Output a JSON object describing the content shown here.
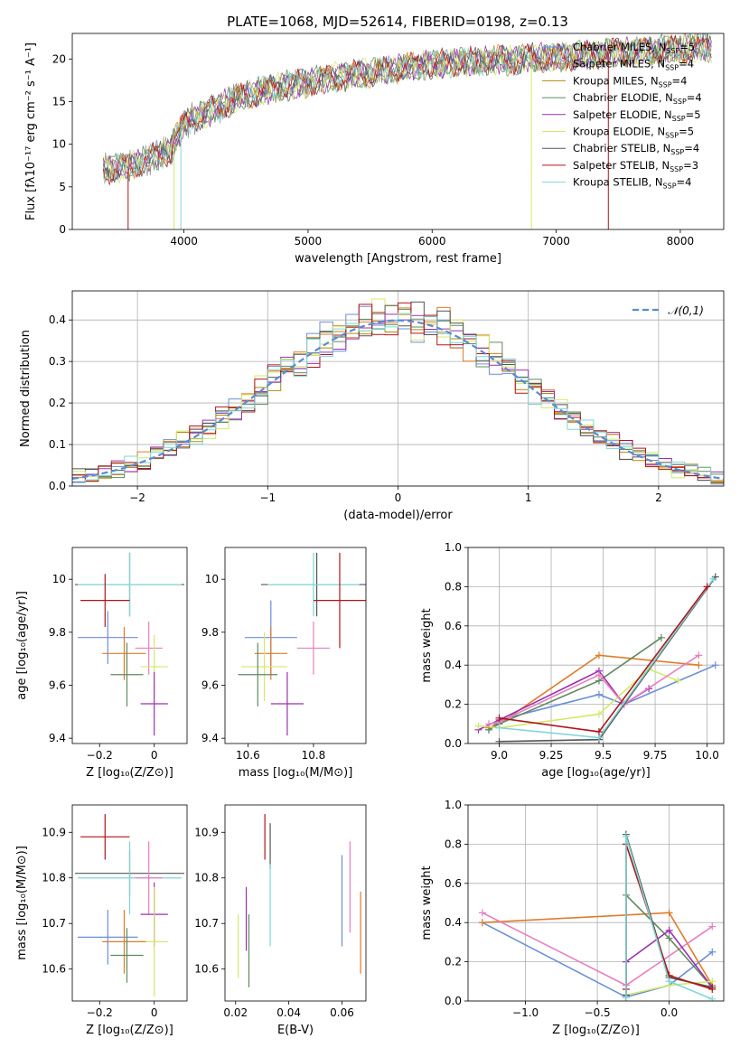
{
  "figure_title": "PLATE=1068, MJD=52614, FIBERID=0198, z=0.13",
  "colors": {
    "Chabrier MILES": "#6a8fd8",
    "Salpeter MILES": "#e07b2a",
    "Kroupa MILES": "#b8860b",
    "Chabrier ELODIE": "#5f8a5f",
    "Salpeter ELODIE": "#9b30b0",
    "Kroupa ELODIE": "#d4e86a",
    "Chabrier STELIB": "#555555",
    "Salpeter STELIB": "#b0151a",
    "Kroupa STELIB": "#7fd6d6",
    "pink": "#e77fc0",
    "normal": "#5b8bd0"
  },
  "chart_data": [
    {
      "id": "spectrum",
      "type": "line",
      "title": "PLATE=1068, MJD=52614, FIBERID=0198, z=0.13",
      "xlabel": "wavelength [Angstrom, rest frame]",
      "ylabel": "Flux [fλ10⁻¹⁷ erg cm⁻² s⁻¹ A⁻¹]",
      "xlim": [
        3100,
        8350
      ],
      "ylim": [
        0,
        23
      ],
      "xticks": [
        4000,
        5000,
        6000,
        7000,
        8000
      ],
      "yticks": [
        0,
        5,
        10,
        15,
        20
      ],
      "legend": [
        {
          "name": "Chabrier MILES, N",
          "sub": "SSP",
          "suffix": "=5"
        },
        {
          "name": "Salpeter MILES, N",
          "sub": "SSP",
          "suffix": "=4"
        },
        {
          "name": "Kroupa MILES, N",
          "sub": "SSP",
          "suffix": "=4"
        },
        {
          "name": "Chabrier ELODIE, N",
          "sub": "SSP",
          "suffix": "=4"
        },
        {
          "name": "Salpeter ELODIE, N",
          "sub": "SSP",
          "suffix": "=5"
        },
        {
          "name": "Kroupa ELODIE, N",
          "sub": "SSP",
          "suffix": "=5"
        },
        {
          "name": "Chabrier STELIB, N",
          "sub": "SSP",
          "suffix": "=4"
        },
        {
          "name": "Salpeter STELIB, N",
          "sub": "SSP",
          "suffix": "=3"
        },
        {
          "name": "Kroupa STELIB, N",
          "sub": "SSP",
          "suffix": "=4"
        }
      ],
      "data_series": {
        "x_range": [
          3350,
          8250
        ],
        "continuum": [
          [
            3350,
            7.0
          ],
          [
            3600,
            7.5
          ],
          [
            3900,
            9.5
          ],
          [
            4000,
            12.5
          ],
          [
            4300,
            14.5
          ],
          [
            4500,
            15.8
          ],
          [
            4800,
            16.8
          ],
          [
            5200,
            17.8
          ],
          [
            5600,
            18.6
          ],
          [
            6000,
            19.4
          ],
          [
            6500,
            19.8
          ],
          [
            7000,
            20.2
          ],
          [
            7500,
            20.8
          ],
          [
            8000,
            21.2
          ],
          [
            8250,
            21.4
          ]
        ]
      }
    },
    {
      "id": "residual-hist",
      "type": "histogram",
      "xlabel": "(data-model)/error",
      "ylabel": "Normed distribution",
      "xlim": [
        -2.5,
        2.5
      ],
      "ylim": [
        0,
        0.47
      ],
      "xticks": [
        -2,
        -1,
        0,
        1,
        2
      ],
      "yticks": [
        0.0,
        0.1,
        0.2,
        0.3,
        0.4
      ],
      "legend": "𝒩(0,1)",
      "bins": [
        -2.5,
        -2.4,
        -2.3,
        -2.2,
        -2.1,
        -2.0,
        -1.9,
        -1.8,
        -1.7,
        -1.6,
        -1.5,
        -1.4,
        -1.3,
        -1.2,
        -1.1,
        -1.0,
        -0.9,
        -0.8,
        -0.7,
        -0.6,
        -0.5,
        -0.4,
        -0.3,
        -0.2,
        -0.1,
        0.0,
        0.1,
        0.2,
        0.3,
        0.4,
        0.5,
        0.6,
        0.7,
        0.8,
        0.9,
        1.0,
        1.1,
        1.2,
        1.3,
        1.4,
        1.5,
        1.6,
        1.7,
        1.8,
        1.9,
        2.0,
        2.1,
        2.2,
        2.3,
        2.4,
        2.5
      ]
    },
    {
      "id": "age-vs-Z",
      "type": "errorbar",
      "xlabel": "Z [log₁₀(Z/Z⊙)]",
      "ylabel": "age  [log₁₀(age/yr)]",
      "xlim": [
        -0.3,
        0.12
      ],
      "ylim": [
        9.38,
        10.12
      ],
      "xticks": [
        -0.2,
        0.0
      ],
      "yticks": [
        9.4,
        9.6,
        9.8,
        10.0
      ],
      "points": [
        {
          "c": "Chabrier STELIB",
          "x": -0.09,
          "y": 9.98,
          "xe": 0.2,
          "ye": 0.12
        },
        {
          "c": "Kroupa STELIB",
          "x": -0.09,
          "y": 9.98,
          "xe": 0.19,
          "ye": 0.12
        },
        {
          "c": "Salpeter STELIB",
          "x": -0.18,
          "y": 9.92,
          "xe": 0.09,
          "ye": 0.1
        },
        {
          "c": "Chabrier MILES",
          "x": -0.17,
          "y": 9.78,
          "xe": 0.11,
          "ye": 0.1
        },
        {
          "c": "Salpeter MILES",
          "x": -0.11,
          "y": 9.72,
          "xe": 0.08,
          "ye": 0.1
        },
        {
          "c": "pink",
          "x": -0.02,
          "y": 9.74,
          "xe": 0.05,
          "ye": 0.1
        },
        {
          "c": "Kroupa ELODIE",
          "x": 0.0,
          "y": 9.67,
          "xe": 0.05,
          "ye": 0.12
        },
        {
          "c": "Chabrier ELODIE",
          "x": -0.1,
          "y": 9.64,
          "xe": 0.06,
          "ye": 0.12
        },
        {
          "c": "Salpeter ELODIE",
          "x": 0.0,
          "y": 9.53,
          "xe": 0.05,
          "ye": 0.12
        }
      ]
    },
    {
      "id": "age-vs-mass",
      "type": "errorbar",
      "xlabel": "mass [log₁₀(M/M⊙)]",
      "ylabel": "",
      "xlim": [
        10.53,
        10.96
      ],
      "ylim": [
        9.38,
        10.12
      ],
      "xticks": [
        10.6,
        10.8
      ],
      "yticks": [
        9.4,
        9.6,
        9.8,
        10.0
      ],
      "points": [
        {
          "c": "Chabrier STELIB",
          "x": 10.81,
          "y": 9.98,
          "xe": 0.17,
          "ye": 0.12
        },
        {
          "c": "Kroupa STELIB",
          "x": 10.8,
          "y": 9.98,
          "xe": 0.14,
          "ye": 0.12
        },
        {
          "c": "Salpeter STELIB",
          "x": 10.88,
          "y": 9.92,
          "xe": 0.08,
          "ye": 0.18
        },
        {
          "c": "Chabrier MILES",
          "x": 10.67,
          "y": 9.78,
          "xe": 0.08,
          "ye": 0.14
        },
        {
          "c": "Salpeter MILES",
          "x": 10.67,
          "y": 9.72,
          "xe": 0.05,
          "ye": 0.1
        },
        {
          "c": "pink",
          "x": 10.8,
          "y": 9.74,
          "xe": 0.05,
          "ye": 0.1
        },
        {
          "c": "Kroupa ELODIE",
          "x": 10.65,
          "y": 9.67,
          "xe": 0.07,
          "ye": 0.13
        },
        {
          "c": "Chabrier ELODIE",
          "x": 10.63,
          "y": 9.64,
          "xe": 0.06,
          "ye": 0.12
        },
        {
          "c": "Salpeter ELODIE",
          "x": 10.72,
          "y": 9.53,
          "xe": 0.05,
          "ye": 0.12
        }
      ]
    },
    {
      "id": "massweight-vs-age",
      "type": "line",
      "xlabel": "age  [log₁₀(age/yr)]",
      "ylabel": "mass weight",
      "xlim": [
        8.85,
        10.08
      ],
      "ylim": [
        0,
        1
      ],
      "xticks": [
        9.0,
        9.25,
        9.5,
        9.75,
        10.0
      ],
      "yticks": [
        0.0,
        0.2,
        0.4,
        0.6,
        0.8,
        1.0
      ],
      "series": [
        {
          "c": "Chabrier MILES",
          "x": [
            8.95,
            9.0,
            9.48,
            9.6,
            10.04
          ],
          "y": [
            0.07,
            0.12,
            0.25,
            0.2,
            0.4
          ]
        },
        {
          "c": "Salpeter MILES",
          "x": [
            8.95,
            9.0,
            9.48,
            9.96
          ],
          "y": [
            0.08,
            0.1,
            0.45,
            0.4
          ]
        },
        {
          "c": "Chabrier ELODIE",
          "x": [
            8.95,
            9.0,
            9.48,
            9.78
          ],
          "y": [
            0.07,
            0.1,
            0.32,
            0.54
          ]
        },
        {
          "c": "Salpeter ELODIE",
          "x": [
            8.9,
            9.0,
            9.48,
            9.6,
            9.72
          ],
          "y": [
            0.07,
            0.12,
            0.37,
            0.2,
            0.28
          ]
        },
        {
          "c": "Kroupa ELODIE",
          "x": [
            8.9,
            9.0,
            9.48,
            9.72,
            9.86
          ],
          "y": [
            0.09,
            0.08,
            0.15,
            0.38,
            0.32
          ]
        },
        {
          "c": "pink",
          "x": [
            8.95,
            9.0,
            9.48,
            9.6,
            9.96
          ],
          "y": [
            0.1,
            0.11,
            0.35,
            0.2,
            0.45
          ]
        },
        {
          "c": "Chabrier STELIB",
          "x": [
            9.0,
            9.48,
            10.04
          ],
          "y": [
            0.01,
            0.02,
            0.85
          ]
        },
        {
          "c": "Kroupa STELIB",
          "x": [
            9.0,
            9.48,
            10.03
          ],
          "y": [
            0.08,
            0.03,
            0.84
          ]
        },
        {
          "c": "Salpeter STELIB",
          "x": [
            9.0,
            9.48,
            10.0
          ],
          "y": [
            0.13,
            0.06,
            0.8
          ]
        }
      ]
    },
    {
      "id": "mass-vs-Z",
      "type": "errorbar",
      "xlabel": "Z [log₁₀(Z/Z⊙)]",
      "ylabel": "mass [log₁₀(M/M⊙)]",
      "xlim": [
        -0.3,
        0.12
      ],
      "ylim": [
        10.53,
        10.96
      ],
      "xticks": [
        -0.2,
        0.0
      ],
      "yticks": [
        10.6,
        10.7,
        10.8,
        10.9
      ],
      "points": [
        {
          "c": "Salpeter STELIB",
          "x": -0.18,
          "y": 10.89,
          "xe": 0.09,
          "ye": 0.05
        },
        {
          "c": "Chabrier STELIB",
          "x": -0.09,
          "y": 10.81,
          "xe": 0.2,
          "ye": 0.05
        },
        {
          "c": "Kroupa STELIB",
          "x": -0.09,
          "y": 10.8,
          "xe": 0.19,
          "ye": 0.08
        },
        {
          "c": "pink",
          "x": -0.02,
          "y": 10.8,
          "xe": 0.05,
          "ye": 0.08
        },
        {
          "c": "Salpeter ELODIE",
          "x": 0.0,
          "y": 10.72,
          "xe": 0.05,
          "ye": 0.07
        },
        {
          "c": "Chabrier MILES",
          "x": -0.17,
          "y": 10.67,
          "xe": 0.11,
          "ye": 0.06
        },
        {
          "c": "Kroupa ELODIE",
          "x": 0.0,
          "y": 10.66,
          "xe": 0.05,
          "ye": 0.12
        },
        {
          "c": "Salpeter MILES",
          "x": -0.11,
          "y": 10.66,
          "xe": 0.08,
          "ye": 0.07
        },
        {
          "c": "Chabrier ELODIE",
          "x": -0.1,
          "y": 10.63,
          "xe": 0.06,
          "ye": 0.06
        }
      ]
    },
    {
      "id": "mass-vs-ebv",
      "type": "errorbar",
      "xlabel": "E(B-V)",
      "ylabel": "",
      "xlim": [
        0.016,
        0.069
      ],
      "ylim": [
        10.53,
        10.96
      ],
      "xticks": [
        0.02,
        0.04,
        0.06
      ],
      "yticks": [
        10.6,
        10.7,
        10.8,
        10.9
      ],
      "points": [
        {
          "c": "Salpeter STELIB",
          "x": 0.031,
          "y": 10.89,
          "xe": 0.0,
          "ye": 0.05
        },
        {
          "c": "Chabrier STELIB",
          "x": 0.033,
          "y": 10.87,
          "xe": 0.0,
          "ye": 0.05
        },
        {
          "c": "Kroupa STELIB",
          "x": 0.033,
          "y": 10.74,
          "xe": 0.0,
          "ye": 0.09
        },
        {
          "c": "Chabrier MILES",
          "x": 0.06,
          "y": 10.75,
          "xe": 0.0,
          "ye": 0.1
        },
        {
          "c": "pink",
          "x": 0.063,
          "y": 10.78,
          "xe": 0.0,
          "ye": 0.1
        },
        {
          "c": "Salpeter MILES",
          "x": 0.067,
          "y": 10.68,
          "xe": 0.0,
          "ye": 0.09
        },
        {
          "c": "Salpeter ELODIE",
          "x": 0.024,
          "y": 10.71,
          "xe": 0.0,
          "ye": 0.07
        },
        {
          "c": "Chabrier ELODIE",
          "x": 0.025,
          "y": 10.64,
          "xe": 0.0,
          "ye": 0.08
        },
        {
          "c": "Kroupa ELODIE",
          "x": 0.021,
          "y": 10.65,
          "xe": 0.0,
          "ye": 0.07
        }
      ]
    },
    {
      "id": "massweight-vs-Z",
      "type": "line",
      "xlabel": "Z [log₁₀(Z/Z⊙)]",
      "ylabel": "mass weight",
      "xlim": [
        -1.4,
        0.38
      ],
      "ylim": [
        0,
        1
      ],
      "xticks": [
        -1.0,
        -0.5,
        0.0
      ],
      "yticks": [
        0.0,
        0.2,
        0.4,
        0.6,
        0.8,
        1.0
      ],
      "series": [
        {
          "c": "Chabrier MILES",
          "x": [
            -1.3,
            -0.3,
            0.0,
            0.3
          ],
          "y": [
            0.4,
            0.02,
            0.08,
            0.25
          ]
        },
        {
          "c": "Salpeter MILES",
          "x": [
            -1.3,
            0.0,
            0.3
          ],
          "y": [
            0.4,
            0.45,
            0.08
          ]
        },
        {
          "c": "pink",
          "x": [
            -1.3,
            -0.3,
            0.3
          ],
          "y": [
            0.45,
            0.08,
            0.38
          ]
        },
        {
          "c": "Chabrier ELODIE",
          "x": [
            -0.3,
            -0.3,
            0.0,
            0.3
          ],
          "y": [
            0.02,
            0.54,
            0.32,
            0.07
          ]
        },
        {
          "c": "Salpeter ELODIE",
          "x": [
            -0.3,
            -0.3,
            0.0,
            0.3
          ],
          "y": [
            0.02,
            0.2,
            0.36,
            0.07
          ]
        },
        {
          "c": "Kroupa ELODIE",
          "x": [
            -0.3,
            0.0,
            0.3
          ],
          "y": [
            0.03,
            0.08,
            0.1
          ]
        },
        {
          "c": "Chabrier STELIB",
          "x": [
            -0.3,
            -0.3,
            0.0,
            0.3
          ],
          "y": [
            0.03,
            0.85,
            0.12,
            0.07
          ]
        },
        {
          "c": "Salpeter STELIB",
          "x": [
            -0.3,
            -0.3,
            0.0,
            0.3
          ],
          "y": [
            0.06,
            0.8,
            0.13,
            0.06
          ]
        },
        {
          "c": "Kroupa STELIB",
          "x": [
            -0.3,
            -0.3,
            0.0,
            0.3
          ],
          "y": [
            0.02,
            0.84,
            0.1,
            0.01
          ]
        }
      ]
    }
  ]
}
